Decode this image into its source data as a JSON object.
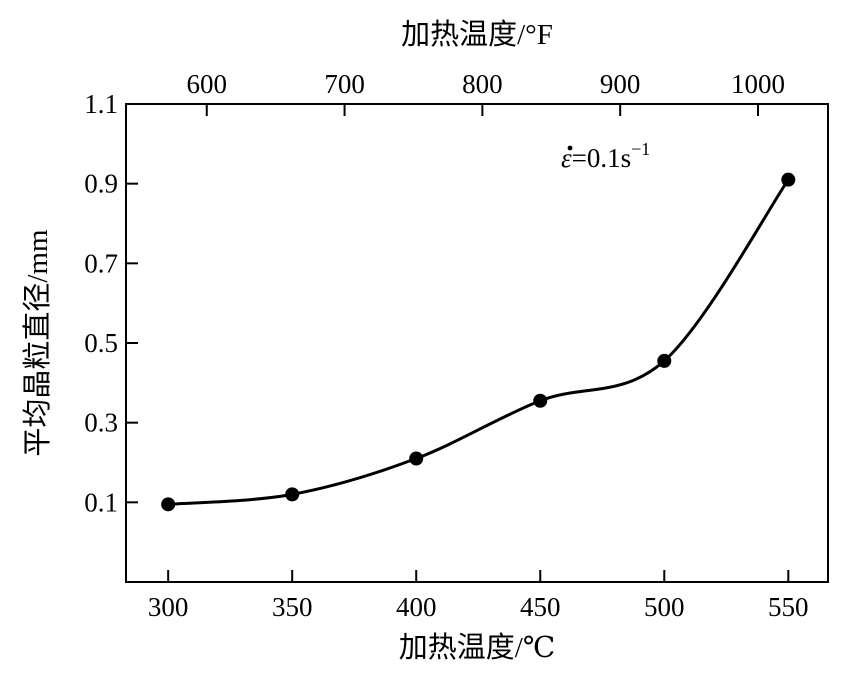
{
  "chart_data": {
    "type": "line",
    "xlabel": "加热温度/℃",
    "ylabel": "平均晶粒直径/mm",
    "x2label": "加热温度/°F",
    "x_ticks": [
      300,
      350,
      400,
      450,
      500,
      550
    ],
    "x_tick_labels": [
      "300",
      "350",
      "400",
      "450",
      "500",
      "550"
    ],
    "x2_ticks": [
      600,
      700,
      800,
      900,
      1000
    ],
    "x2_tick_labels": [
      "600",
      "700",
      "800",
      "900",
      "1000"
    ],
    "y_ticks": [
      0.1,
      0.3,
      0.5,
      0.7,
      0.9,
      1.1
    ],
    "y_tick_labels": [
      "0.1",
      "0.3",
      "0.5",
      "0.7",
      "0.9",
      "1.1"
    ],
    "xlim": [
      283,
      566
    ],
    "ylim": [
      -0.1,
      1.1
    ],
    "grid": false,
    "annotation": {
      "symbol": "ε",
      "text": "=0.1s",
      "exponent": "−1"
    },
    "series": [
      {
        "x": [
          300,
          350,
          400,
          450,
          500,
          550
        ],
        "y": [
          0.095,
          0.12,
          0.21,
          0.355,
          0.455,
          0.91
        ],
        "marker": "circle",
        "color": "#000000"
      }
    ]
  }
}
